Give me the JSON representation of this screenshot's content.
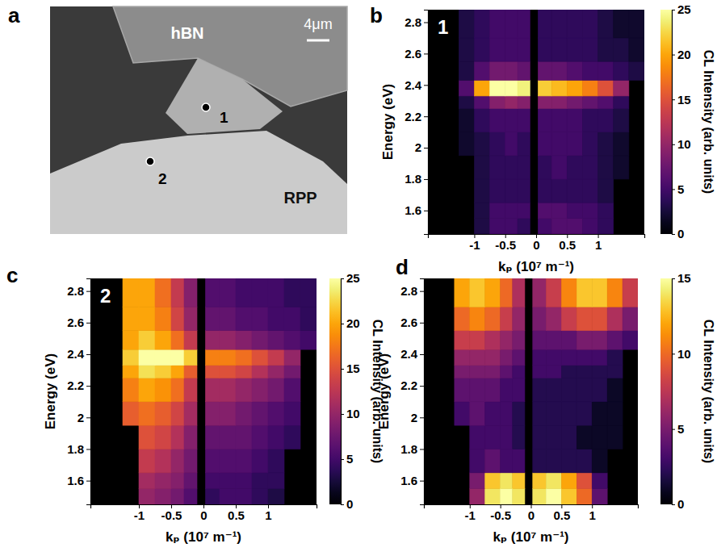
{
  "image_panel": {
    "letter": "a",
    "texts": [
      "hBN",
      "RPP"
    ],
    "scale_bar": "4μm",
    "point_labels": [
      "1",
      "2"
    ]
  },
  "chart_data": [
    {
      "type": "heatmap",
      "letter": "b",
      "annotation": "1",
      "x_label": "kₚ (10⁷ m⁻¹)",
      "y_label": "Energy (eV)",
      "x_edges": [
        -1.75,
        -1.5,
        -1.25,
        -1,
        -0.75,
        -0.5,
        -0.3,
        -0.1,
        0.03,
        0.25,
        0.5,
        0.75,
        1,
        1.25,
        1.5,
        1.75
      ],
      "y_edges": [
        1.45,
        1.55,
        1.65,
        1.8,
        1.95,
        2.1,
        2.25,
        2.33,
        2.43,
        2.55,
        2.7,
        2.88
      ],
      "z": [
        [
          null,
          null,
          null,
          3,
          5,
          5,
          4,
          null,
          5,
          6,
          6,
          5,
          4,
          null,
          null
        ],
        [
          null,
          null,
          null,
          3,
          5,
          5,
          5,
          null,
          6,
          6,
          5,
          5,
          4,
          null,
          null
        ],
        [
          null,
          null,
          null,
          3,
          4,
          4,
          4,
          null,
          4,
          4,
          4,
          4,
          3,
          null,
          null
        ],
        [
          null,
          null,
          null,
          3,
          4,
          4,
          4,
          null,
          4,
          5,
          4,
          4,
          3,
          2,
          null
        ],
        [
          null,
          null,
          2,
          3,
          4,
          5,
          4,
          null,
          5,
          5,
          5,
          4,
          3,
          2,
          null
        ],
        [
          null,
          null,
          2,
          4,
          5,
          5,
          5,
          null,
          5,
          5,
          5,
          4,
          4,
          3,
          null
        ],
        [
          null,
          null,
          3,
          6,
          9,
          10,
          9,
          null,
          9,
          9,
          8,
          7,
          6,
          4,
          null
        ],
        [
          null,
          null,
          6,
          20,
          25,
          25,
          24,
          null,
          22,
          21,
          20,
          18,
          15,
          10,
          null
        ],
        [
          null,
          null,
          3,
          6,
          8,
          8,
          7,
          null,
          7,
          7,
          6,
          5,
          5,
          4,
          3
        ],
        [
          null,
          null,
          3,
          4,
          5,
          5,
          5,
          null,
          4,
          4,
          4,
          4,
          3,
          3,
          2
        ],
        [
          null,
          null,
          3,
          4,
          5,
          5,
          5,
          null,
          4,
          4,
          4,
          4,
          3,
          2,
          2
        ]
      ],
      "xlim": [
        -1.75,
        1.75
      ],
      "ylim": [
        1.45,
        2.88
      ],
      "xticks": [
        -1,
        -0.5,
        0,
        0.5,
        1
      ],
      "yticks": [
        1.6,
        1.8,
        2,
        2.2,
        2.4,
        2.6,
        2.8
      ],
      "color": "inferno",
      "colorbar_label": "CL Intensity (arb. units)",
      "colorbar_range": [
        0,
        25
      ],
      "colorbar_ticks": [
        0,
        5,
        10,
        15,
        20,
        25
      ]
    },
    {
      "type": "heatmap",
      "letter": "c",
      "annotation": "2",
      "x_label": "kₚ (10⁷ m⁻¹)",
      "y_label": "Energy (eV)",
      "x_edges": [
        -1.75,
        -1.5,
        -1.25,
        -1,
        -0.75,
        -0.5,
        -0.3,
        -0.1,
        0.03,
        0.25,
        0.5,
        0.75,
        1,
        1.25,
        1.5,
        1.75
      ],
      "y_edges": [
        1.45,
        1.55,
        1.65,
        1.8,
        1.95,
        2.1,
        2.25,
        2.33,
        2.43,
        2.55,
        2.7,
        2.88
      ],
      "z": [
        [
          null,
          null,
          null,
          10,
          9,
          8,
          6,
          null,
          4,
          5,
          5,
          4,
          3,
          null,
          null
        ],
        [
          null,
          null,
          null,
          11,
          10,
          9,
          7,
          null,
          5,
          5,
          5,
          4,
          4,
          null,
          null
        ],
        [
          null,
          null,
          null,
          13,
          12,
          10,
          8,
          null,
          6,
          6,
          6,
          5,
          4,
          null,
          null
        ],
        [
          null,
          null,
          null,
          15,
          14,
          12,
          9,
          null,
          7,
          7,
          7,
          6,
          5,
          4,
          null
        ],
        [
          null,
          null,
          16,
          17,
          16,
          14,
          11,
          null,
          9,
          9,
          8,
          7,
          6,
          5,
          null
        ],
        [
          null,
          null,
          18,
          20,
          19,
          17,
          13,
          null,
          11,
          11,
          10,
          9,
          8,
          6,
          null
        ],
        [
          null,
          null,
          20,
          23,
          22,
          20,
          16,
          null,
          15,
          15,
          14,
          12,
          10,
          8,
          null
        ],
        [
          null,
          null,
          22,
          25,
          25,
          25,
          22,
          null,
          18,
          18,
          17,
          15,
          13,
          10,
          null
        ],
        [
          null,
          null,
          20,
          22,
          20,
          17,
          13,
          null,
          10,
          10,
          9,
          8,
          7,
          6,
          5
        ],
        [
          null,
          null,
          20,
          20,
          18,
          14,
          10,
          null,
          7,
          7,
          6,
          6,
          5,
          5,
          4
        ],
        [
          null,
          null,
          20,
          20,
          17,
          13,
          9,
          null,
          6,
          6,
          5,
          5,
          5,
          4,
          4
        ]
      ],
      "xlim": [
        -1.75,
        1.75
      ],
      "ylim": [
        1.45,
        2.88
      ],
      "xticks": [
        -1,
        -0.5,
        0,
        0.5,
        1
      ],
      "yticks": [
        1.6,
        1.8,
        2,
        2.2,
        2.4,
        2.6,
        2.8
      ],
      "color": "inferno",
      "colorbar_label": "CL Intensity (arb. units)",
      "colorbar_range": [
        0,
        25
      ],
      "colorbar_ticks": [
        0,
        5,
        10,
        15,
        20,
        25
      ]
    },
    {
      "type": "heatmap",
      "letter": "d",
      "x_label": "kₚ (10⁷ m⁻¹)",
      "y_label": "Energy (eV)",
      "x_edges": [
        -1.75,
        -1.5,
        -1.25,
        -1,
        -0.75,
        -0.5,
        -0.3,
        -0.1,
        0.03,
        0.25,
        0.5,
        0.75,
        1,
        1.25,
        1.5,
        1.75
      ],
      "y_edges": [
        1.45,
        1.55,
        1.65,
        1.8,
        1.95,
        2.1,
        2.25,
        2.33,
        2.43,
        2.55,
        2.7,
        2.88
      ],
      "z": [
        [
          null,
          null,
          null,
          6,
          14,
          15,
          14,
          null,
          14,
          15,
          13,
          10,
          4,
          null,
          null
        ],
        [
          null,
          null,
          null,
          5,
          13,
          14,
          13,
          null,
          13,
          14,
          12,
          9,
          3,
          null,
          null
        ],
        [
          null,
          null,
          null,
          3,
          4,
          3,
          3,
          null,
          2,
          2,
          2,
          2,
          1,
          null,
          null
        ],
        [
          null,
          null,
          null,
          3,
          3,
          3,
          2,
          null,
          2,
          2,
          2,
          1,
          1,
          1,
          null
        ],
        [
          null,
          null,
          3,
          4,
          3,
          3,
          2,
          null,
          2,
          2,
          2,
          2,
          1,
          1,
          null
        ],
        [
          null,
          null,
          4,
          4,
          4,
          3,
          3,
          null,
          2,
          2,
          2,
          2,
          2,
          1,
          null
        ],
        [
          null,
          null,
          5,
          5,
          5,
          4,
          3,
          null,
          3,
          3,
          2,
          2,
          2,
          2,
          null
        ],
        [
          null,
          null,
          6,
          6,
          6,
          5,
          4,
          null,
          3,
          3,
          3,
          3,
          3,
          2,
          null
        ],
        [
          null,
          null,
          8,
          8,
          7,
          6,
          5,
          null,
          4,
          4,
          4,
          5,
          5,
          4,
          3
        ],
        [
          null,
          null,
          10,
          11,
          10,
          8,
          6,
          null,
          5,
          6,
          8,
          9,
          9,
          7,
          5
        ],
        [
          null,
          null,
          12,
          13,
          12,
          10,
          7,
          null,
          6,
          8,
          11,
          13,
          13,
          11,
          8
        ]
      ],
      "xlim": [
        -1.75,
        1.75
      ],
      "ylim": [
        1.45,
        2.88
      ],
      "xticks": [
        -1,
        -0.5,
        0,
        0.5,
        1
      ],
      "yticks": [
        1.6,
        1.8,
        2,
        2.2,
        2.4,
        2.6,
        2.8
      ],
      "color": "inferno",
      "colorbar_label": "CL Intensity (arb. units)",
      "colorbar_range": [
        0,
        15
      ],
      "colorbar_ticks": [
        0,
        5,
        10,
        15
      ]
    }
  ]
}
